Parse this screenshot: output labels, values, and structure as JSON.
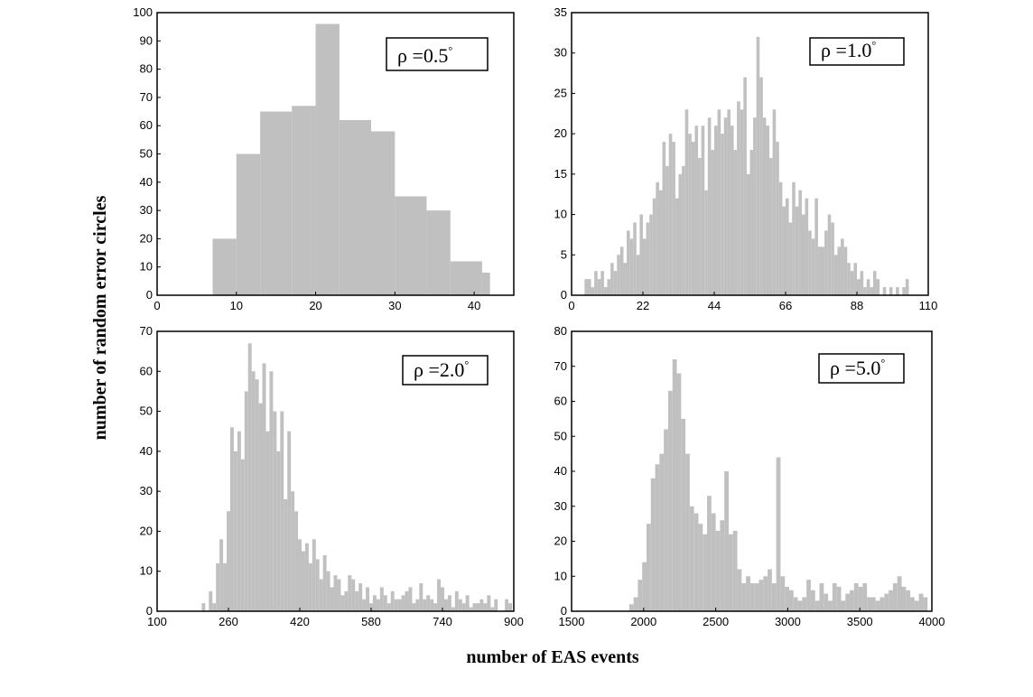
{
  "xlabel": "number of EAS events",
  "ylabel": "number of random error circles",
  "colors": {
    "bar": "#c0c0c0",
    "axis": "#000000"
  },
  "chart_data": [
    {
      "type": "bar",
      "annotation": {
        "prefix": "ρ =",
        "value": "0.5",
        "degree": "°"
      },
      "xlim": [
        0,
        45
      ],
      "ylim": [
        0,
        100
      ],
      "xticks": [
        0,
        10,
        20,
        30,
        40
      ],
      "yticks": [
        0,
        10,
        20,
        30,
        40,
        50,
        60,
        70,
        80,
        90,
        100
      ],
      "bin_edges": [
        7,
        10,
        13,
        17,
        20,
        23,
        27,
        30,
        34,
        37,
        41,
        42,
        45
      ],
      "values": [
        20,
        50,
        65,
        67,
        96,
        62,
        58,
        35,
        30,
        12,
        8,
        0,
        3
      ]
    },
    {
      "type": "bar",
      "annotation": {
        "prefix": "ρ =",
        "value": "1.0",
        "degree": "°"
      },
      "xlim": [
        0,
        110
      ],
      "ylim": [
        0,
        35
      ],
      "xticks": [
        0,
        22,
        44,
        66,
        88,
        110
      ],
      "yticks": [
        0,
        5,
        10,
        15,
        20,
        25,
        30,
        35
      ],
      "x": [
        4,
        5,
        6,
        7,
        8,
        9,
        10,
        11,
        12,
        13,
        14,
        15,
        16,
        17,
        18,
        19,
        20,
        21,
        22,
        23,
        24,
        25,
        26,
        27,
        28,
        29,
        30,
        31,
        32,
        33,
        34,
        35,
        36,
        37,
        38,
        39,
        40,
        41,
        42,
        43,
        44,
        45,
        46,
        47,
        48,
        49,
        50,
        51,
        52,
        53,
        54,
        55,
        56,
        57,
        58,
        59,
        60,
        61,
        62,
        63,
        64,
        65,
        66,
        67,
        68,
        69,
        70,
        71,
        72,
        73,
        74,
        75,
        76,
        77,
        78,
        79,
        80,
        81,
        82,
        83,
        84,
        85,
        86,
        87,
        88,
        89,
        90,
        91,
        92,
        93,
        94,
        95,
        96,
        97,
        98,
        99,
        100,
        101,
        102,
        103
      ],
      "values": [
        2,
        2,
        1,
        3,
        2,
        3,
        1,
        2,
        4,
        3,
        5,
        6,
        4,
        8,
        7,
        9,
        5,
        10,
        7,
        9,
        10,
        12,
        14,
        13,
        19,
        16,
        20,
        19,
        12,
        15,
        16,
        23,
        20,
        19,
        21,
        17,
        21,
        13,
        22,
        18,
        21,
        23,
        20,
        22,
        23,
        21,
        18,
        24,
        23,
        27,
        15,
        18,
        22,
        32,
        27,
        22,
        21,
        17,
        23,
        19,
        14,
        11,
        12,
        9,
        14,
        11,
        13,
        10,
        12,
        8,
        7,
        12,
        6,
        6,
        8,
        10,
        9,
        5,
        6,
        7,
        6,
        4,
        3,
        4,
        2,
        3,
        1,
        2,
        1,
        3,
        2,
        0,
        1,
        0,
        1,
        0,
        1,
        0,
        1,
        2
      ]
    },
    {
      "type": "bar",
      "annotation": {
        "prefix": "ρ =",
        "value": "2.0",
        "degree": "°"
      },
      "xlim": [
        100,
        900
      ],
      "ylim": [
        0,
        70
      ],
      "xticks": [
        100,
        260,
        420,
        580,
        740,
        900
      ],
      "yticks": [
        0,
        10,
        20,
        30,
        40,
        50,
        60,
        70
      ],
      "x": [
        200,
        208,
        216,
        224,
        232,
        240,
        248,
        256,
        264,
        272,
        280,
        288,
        296,
        304,
        312,
        320,
        328,
        336,
        344,
        352,
        360,
        368,
        376,
        384,
        392,
        400,
        408,
        416,
        424,
        432,
        440,
        448,
        456,
        464,
        472,
        480,
        488,
        496,
        504,
        512,
        520,
        528,
        536,
        544,
        552,
        560,
        568,
        576,
        584,
        592,
        600,
        608,
        616,
        624,
        632,
        640,
        648,
        656,
        664,
        672,
        680,
        688,
        696,
        704,
        712,
        720,
        728,
        736,
        744,
        752,
        760,
        768,
        776,
        784,
        792,
        800,
        808,
        816,
        824,
        832,
        840,
        848,
        856,
        864,
        872,
        880,
        888
      ],
      "values": [
        2,
        0,
        5,
        2,
        12,
        18,
        12,
        25,
        46,
        40,
        45,
        38,
        55,
        67,
        60,
        58,
        52,
        62,
        45,
        60,
        50,
        40,
        50,
        28,
        45,
        30,
        25,
        18,
        15,
        17,
        12,
        18,
        13,
        8,
        14,
        10,
        6,
        9,
        8,
        4,
        5,
        9,
        8,
        5,
        7,
        3,
        6,
        2,
        4,
        3,
        6,
        4,
        2,
        5,
        3,
        3,
        4,
        5,
        6,
        2,
        3,
        7,
        3,
        4,
        3,
        2,
        8,
        6,
        3,
        4,
        1,
        5,
        3,
        2,
        4,
        1,
        2,
        2,
        3,
        2,
        4,
        1,
        3,
        0,
        0,
        3,
        2
      ]
    },
    {
      "type": "bar",
      "annotation": {
        "prefix": "ρ =",
        "value": "5.0",
        "degree": "°"
      },
      "xlim": [
        1500,
        4000
      ],
      "ylim": [
        0,
        80
      ],
      "xticks": [
        1500,
        2000,
        2500,
        3000,
        3500,
        4000
      ],
      "yticks": [
        0,
        10,
        20,
        30,
        40,
        50,
        60,
        70,
        80
      ],
      "x": [
        1900,
        1930,
        1960,
        1990,
        2020,
        2050,
        2080,
        2110,
        2140,
        2170,
        2200,
        2230,
        2260,
        2290,
        2320,
        2350,
        2380,
        2410,
        2440,
        2470,
        2500,
        2530,
        2560,
        2590,
        2620,
        2650,
        2680,
        2710,
        2740,
        2770,
        2800,
        2830,
        2860,
        2890,
        2920,
        2950,
        2980,
        3010,
        3040,
        3070,
        3100,
        3130,
        3160,
        3190,
        3220,
        3250,
        3280,
        3310,
        3340,
        3370,
        3400,
        3430,
        3460,
        3490,
        3520,
        3550,
        3580,
        3610,
        3640,
        3670,
        3700,
        3730,
        3760,
        3790,
        3820,
        3850,
        3880,
        3910,
        3940
      ],
      "values": [
        2,
        4,
        9,
        14,
        25,
        38,
        42,
        45,
        52,
        63,
        72,
        68,
        55,
        45,
        30,
        28,
        25,
        22,
        33,
        28,
        23,
        26,
        40,
        22,
        23,
        12,
        8,
        10,
        8,
        8,
        9,
        10,
        12,
        8,
        44,
        10,
        7,
        6,
        4,
        3,
        4,
        9,
        6,
        3,
        8,
        5,
        3,
        8,
        7,
        3,
        5,
        6,
        8,
        7,
        8,
        4,
        4,
        3,
        4,
        5,
        6,
        8,
        10,
        7,
        6,
        4,
        3,
        5,
        4
      ]
    }
  ]
}
